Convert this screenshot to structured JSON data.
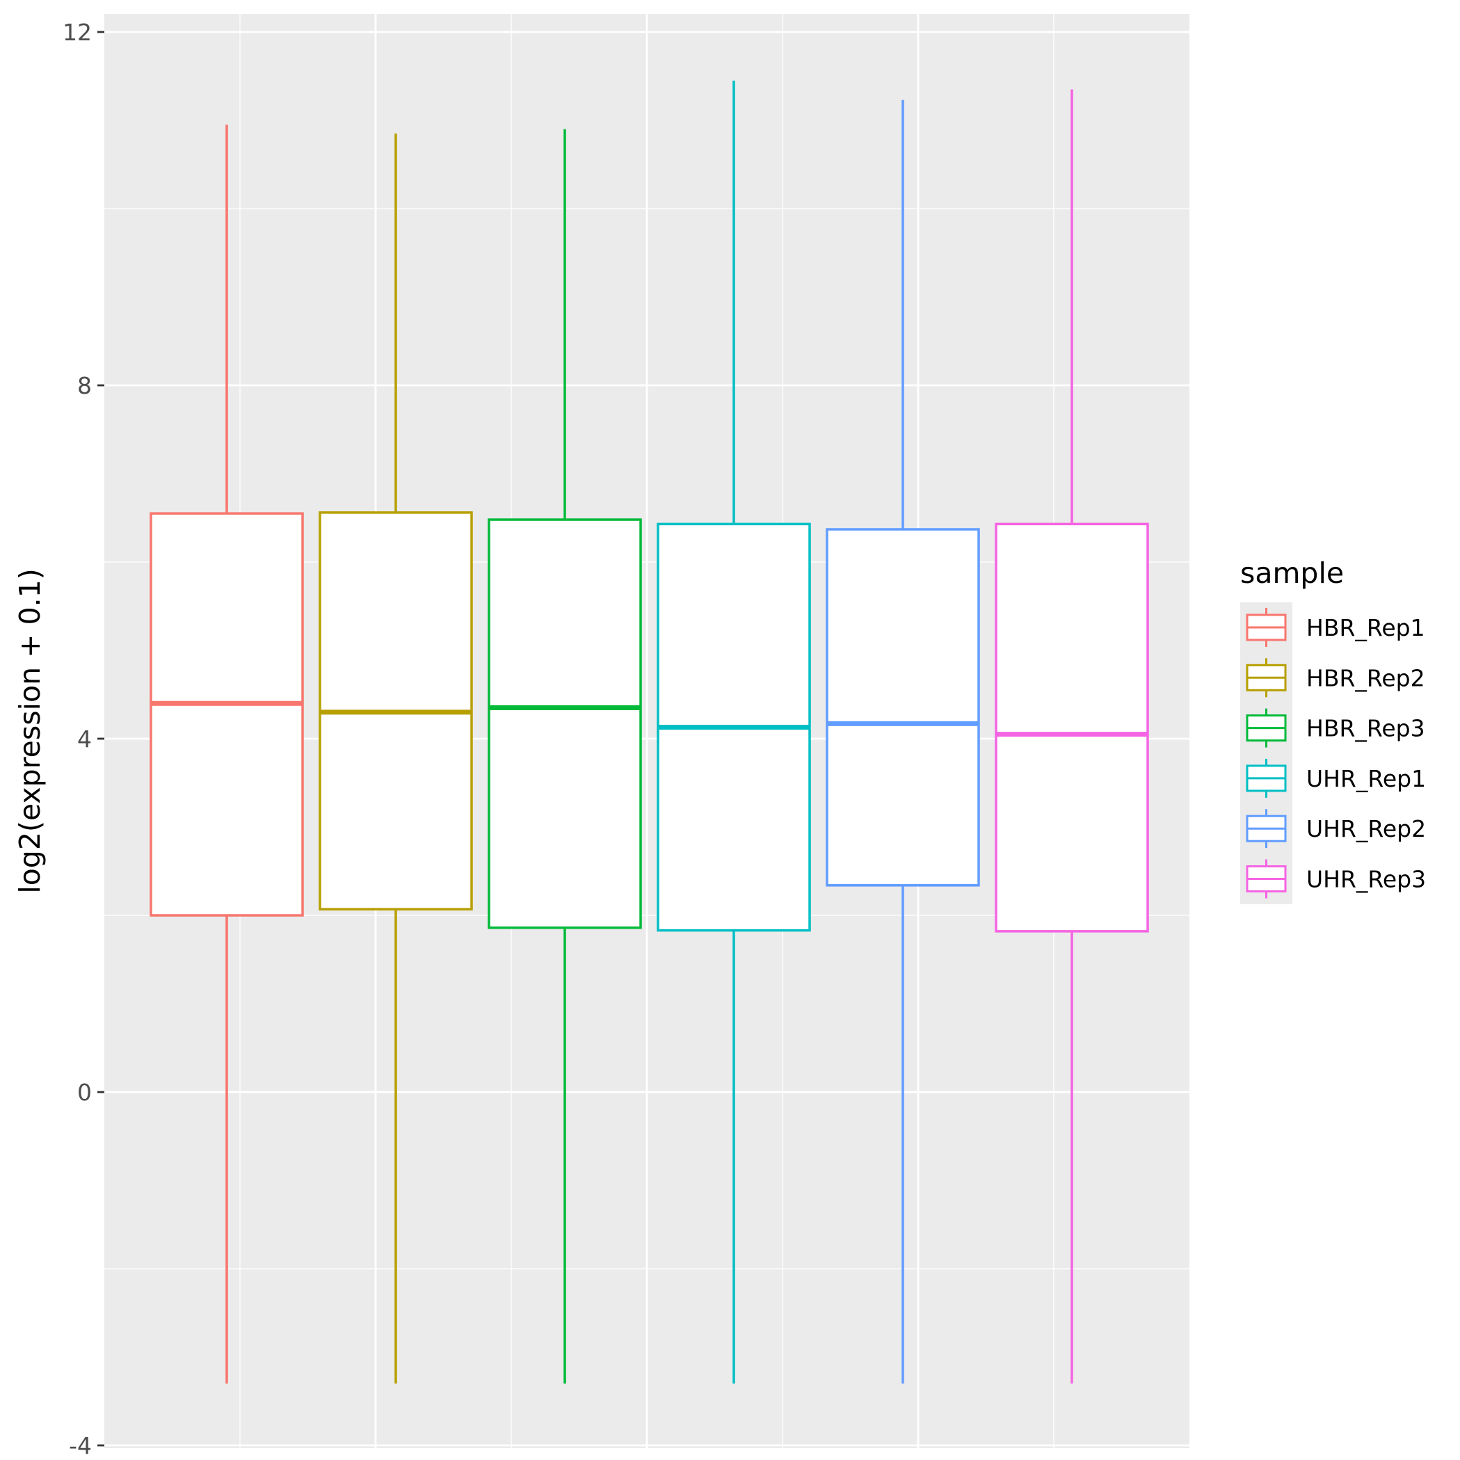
{
  "chart_data": {
    "type": "boxplot",
    "title": "",
    "xlabel": "",
    "ylabel": "log2(expression + 0.1)",
    "ylim": [
      -4,
      12
    ],
    "yticks": [
      -4,
      0,
      4,
      8,
      12
    ],
    "ytick_labels": [
      "-4",
      "0",
      "4",
      "8",
      "12"
    ],
    "grid": true,
    "legend": {
      "title": "sample",
      "position": "right"
    },
    "series": [
      {
        "name": "HBR_Rep1",
        "color": "#F8766D",
        "whisker_low": -3.3,
        "q1": 2.0,
        "median": 4.4,
        "q3": 6.55,
        "whisker_high": 10.95
      },
      {
        "name": "HBR_Rep2",
        "color": "#B79F00",
        "whisker_low": -3.3,
        "q1": 2.07,
        "median": 4.3,
        "q3": 6.56,
        "whisker_high": 10.85
      },
      {
        "name": "HBR_Rep3",
        "color": "#00BA38",
        "whisker_low": -3.3,
        "q1": 1.86,
        "median": 4.35,
        "q3": 6.48,
        "whisker_high": 10.9
      },
      {
        "name": "UHR_Rep1",
        "color": "#00BFC4",
        "whisker_low": -3.3,
        "q1": 1.83,
        "median": 4.13,
        "q3": 6.43,
        "whisker_high": 11.45
      },
      {
        "name": "UHR_Rep2",
        "color": "#619CFF",
        "whisker_low": -3.3,
        "q1": 2.34,
        "median": 4.17,
        "q3": 6.37,
        "whisker_high": 11.23
      },
      {
        "name": "UHR_Rep3",
        "color": "#F564E3",
        "whisker_low": -3.3,
        "q1": 1.82,
        "median": 4.05,
        "q3": 6.43,
        "whisker_high": 11.35
      }
    ]
  }
}
